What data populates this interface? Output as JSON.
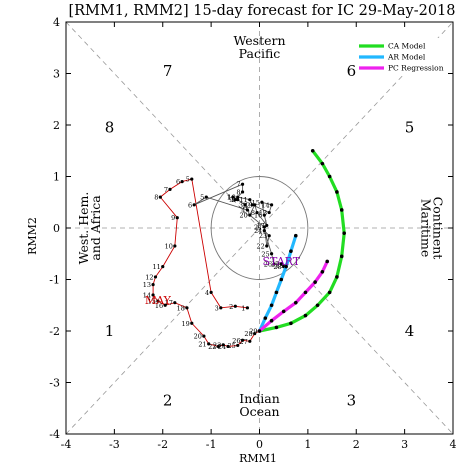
{
  "chart_data": {
    "type": "line",
    "title": "[RMM1, RMM2] 15-day forecast for IC 29-May-2018",
    "xlabel": "RMM1",
    "ylabel": "RMM2",
    "xlim": [
      -4,
      4
    ],
    "ylim": [
      -4,
      4
    ],
    "xticks": [
      "-4",
      "-3",
      "-2",
      "-1",
      "0",
      "1",
      "2",
      "3",
      "4"
    ],
    "yticks": [
      "-4",
      "-3",
      "-2",
      "-1",
      "0",
      "1",
      "2",
      "3",
      "4"
    ],
    "phases": [
      "1",
      "2",
      "3",
      "4",
      "5",
      "6",
      "7",
      "8"
    ],
    "regions": {
      "top": [
        "Western",
        "Pacific"
      ],
      "bottom": [
        "Indian",
        "Ocean"
      ],
      "left": [
        "West. Hem.",
        "and Africa"
      ],
      "right": [
        "Maritime",
        "Continent"
      ]
    },
    "legend": {
      "placement": "top-right",
      "entries": [
        {
          "label": "CA Model",
          "color": "#22dd22"
        },
        {
          "label": "AR Model",
          "color": "#22b8ff"
        },
        {
          "label": "PC Regression",
          "color": "#ee22ee"
        }
      ]
    },
    "annotations": {
      "month": {
        "text": "MAY",
        "x": -2.1,
        "y": -1.48,
        "color": "#cc0000"
      },
      "start": {
        "text": "START",
        "x": 0.45,
        "y": -0.72,
        "color": "#8800aa"
      }
    },
    "observed": {
      "color": "#cc0000",
      "points": [
        {
          "label": "1",
          "x": -0.25,
          "y": -1.55
        },
        {
          "label": "2",
          "x": -0.5,
          "y": -1.52
        },
        {
          "label": "3",
          "x": -0.8,
          "y": -1.55
        },
        {
          "label": "4",
          "x": -1.0,
          "y": -1.25
        },
        {
          "label": "5",
          "x": -1.4,
          "y": 0.95
        },
        {
          "label": "6",
          "x": -1.6,
          "y": 0.9
        },
        {
          "label": "7",
          "x": -1.85,
          "y": 0.75
        },
        {
          "label": "8",
          "x": -2.05,
          "y": 0.6
        },
        {
          "label": "9",
          "x": -1.7,
          "y": 0.2
        },
        {
          "label": "10",
          "x": -1.75,
          "y": -0.35
        },
        {
          "label": "11",
          "x": -2.0,
          "y": -0.75
        },
        {
          "label": "12",
          "x": -2.15,
          "y": -0.95
        },
        {
          "label": "13",
          "x": -2.2,
          "y": -1.1
        },
        {
          "label": "14",
          "x": -2.2,
          "y": -1.3
        },
        {
          "label": "15",
          "x": -2.1,
          "y": -1.42
        },
        {
          "label": "16",
          "x": -1.95,
          "y": -1.5
        },
        {
          "label": "17",
          "x": -1.75,
          "y": -1.45
        },
        {
          "label": "18",
          "x": -1.5,
          "y": -1.55
        },
        {
          "label": "19",
          "x": -1.4,
          "y": -1.85
        },
        {
          "label": "20",
          "x": -1.15,
          "y": -2.1
        },
        {
          "label": "21",
          "x": -1.05,
          "y": -2.25
        },
        {
          "label": "22",
          "x": -0.85,
          "y": -2.3
        },
        {
          "label": "23",
          "x": -0.75,
          "y": -2.27
        },
        {
          "label": "24",
          "x": -0.65,
          "y": -2.3
        },
        {
          "label": "25",
          "x": -0.45,
          "y": -2.28
        },
        {
          "label": "26",
          "x": -0.35,
          "y": -2.18
        },
        {
          "label": "27",
          "x": -0.2,
          "y": -2.2
        },
        {
          "label": "28",
          "x": -0.1,
          "y": -2.05
        },
        {
          "label": "29",
          "x": 0.0,
          "y": -2.0
        }
      ]
    },
    "observed_upper": {
      "points": [
        {
          "label": "1",
          "x": -0.55,
          "y": 0.6
        },
        {
          "label": "2",
          "x": -0.45,
          "y": 0.55
        },
        {
          "label": "3",
          "x": -0.3,
          "y": 0.45
        },
        {
          "label": "4",
          "x": -0.25,
          "y": 0.35
        },
        {
          "label": "5",
          "x": -1.1,
          "y": 0.6
        },
        {
          "label": "6",
          "x": -1.35,
          "y": 0.45
        },
        {
          "label": "7",
          "x": -0.35,
          "y": 0.85
        },
        {
          "label": "8",
          "x": -0.35,
          "y": 0.7
        },
        {
          "label": "9",
          "x": -0.5,
          "y": 0.55
        },
        {
          "label": "10",
          "x": -0.45,
          "y": 0.6
        },
        {
          "label": "11",
          "x": -0.2,
          "y": 0.55
        },
        {
          "label": "12",
          "x": -0.15,
          "y": 0.45
        },
        {
          "label": "13",
          "x": 0.2,
          "y": 0.3
        },
        {
          "label": "14",
          "x": 0.25,
          "y": 0.45
        },
        {
          "label": "15",
          "x": 0.05,
          "y": 0.5
        },
        {
          "label": "16",
          "x": 0.1,
          "y": 0.25
        },
        {
          "label": "17",
          "x": 0.15,
          "y": 0.05
        },
        {
          "label": "18",
          "x": -0.05,
          "y": 0.3
        },
        {
          "label": "19",
          "x": -0.1,
          "y": 0.45
        },
        {
          "label": "20",
          "x": -0.2,
          "y": 0.25
        },
        {
          "label": "21",
          "x": 0.1,
          "y": 0.02
        },
        {
          "label": "22",
          "x": 0.15,
          "y": -0.35
        },
        {
          "label": "23",
          "x": 0.2,
          "y": -0.15
        },
        {
          "label": "24",
          "x": 0.1,
          "y": -0.05
        },
        {
          "label": "25",
          "x": 0.25,
          "y": -0.5
        },
        {
          "label": "26",
          "x": 0.3,
          "y": -0.7
        },
        {
          "label": "27",
          "x": 0.45,
          "y": -0.7
        },
        {
          "label": "28",
          "x": 0.5,
          "y": -0.75
        },
        {
          "label": "29",
          "x": 0.55,
          "y": -0.72
        }
      ]
    },
    "series": [
      {
        "name": "CA Model",
        "color": "#22dd22",
        "x": [
          0.0,
          0.35,
          0.65,
          0.95,
          1.2,
          1.45,
          1.6,
          1.7,
          1.75,
          1.7,
          1.6,
          1.45,
          1.3,
          1.1
        ],
        "y": [
          -2.0,
          -1.93,
          -1.85,
          -1.7,
          -1.5,
          -1.25,
          -0.95,
          -0.55,
          -0.1,
          0.35,
          0.7,
          1.0,
          1.25,
          1.5
        ]
      },
      {
        "name": "AR Model",
        "color": "#22b8ff",
        "x": [
          0.0,
          0.12,
          0.25,
          0.35,
          0.45,
          0.55,
          0.65,
          0.75
        ],
        "y": [
          -2.0,
          -1.75,
          -1.5,
          -1.25,
          -1.0,
          -0.75,
          -0.45,
          -0.15
        ]
      },
      {
        "name": "PC Regression",
        "color": "#ee22ee",
        "x": [
          0.0,
          0.25,
          0.5,
          0.75,
          0.95,
          1.15,
          1.3,
          1.4
        ],
        "y": [
          -2.0,
          -1.8,
          -1.62,
          -1.45,
          -1.25,
          -1.05,
          -0.85,
          -0.65
        ]
      }
    ]
  }
}
